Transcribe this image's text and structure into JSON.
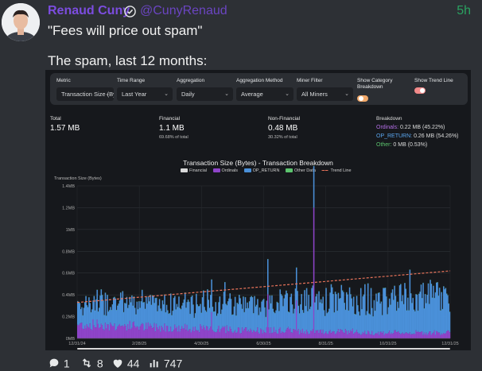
{
  "tweet": {
    "author": "Renaud Cuny",
    "handle": "@CunyRenaud",
    "time": "5h",
    "line1": "\"Fees will price out spam\"",
    "line2": "The spam, last 12 months:"
  },
  "controls": {
    "metric": {
      "label": "Metric",
      "value": "Transaction Size (Bytes)"
    },
    "time_range": {
      "label": "Time Range",
      "value": "Last Year"
    },
    "aggregation": {
      "label": "Aggregation",
      "value": "Daily"
    },
    "aggregation_method": {
      "label": "Aggregation Method",
      "value": "Average"
    },
    "miner_filter": {
      "label": "Miner Filter",
      "value": "All Miners"
    },
    "show_category": {
      "label": "Show Category Breakdown",
      "on": true
    },
    "show_trend": {
      "label": "Show Trend Line",
      "on": true
    }
  },
  "stats": {
    "total": {
      "label": "Total",
      "value": "1.57 MB"
    },
    "financial": {
      "label": "Financial",
      "value": "1.1 MB",
      "sub": "69.68% of total"
    },
    "non_financial": {
      "label": "Non-Financial",
      "value": "0.48 MB",
      "sub": "30.32% of total"
    },
    "breakdown": {
      "label": "Breakdown",
      "ordinals_name": "Ordinals:",
      "ordinals_value": "0.22 MB (45.22%)",
      "opreturn_name": "OP_RETURN:",
      "opreturn_value": "0.26 MB (54.26%)",
      "other_name": "Other:",
      "other_value": "0 MB (0.53%)"
    }
  },
  "colors": {
    "financial": "#d9d9d9",
    "ordinals": "#8e44c9",
    "op_return": "#4a90d9",
    "other": "#5cc46e",
    "trend": "#e8735a",
    "author": "#7c4de0"
  },
  "chart_data": {
    "type": "bar",
    "title": "Transaction Size (Bytes) - Transaction Breakdown",
    "ylabel": "Transaction Size (Bytes)",
    "ylim": [
      0,
      1.4
    ],
    "yticks": [
      "0MB",
      "0.2MB",
      "0.4MB",
      "0.6MB",
      "0.8MB",
      "1MB",
      "1.2MB",
      "1.4MB"
    ],
    "xticks": [
      "12/31/24",
      "2/28/25",
      "4/30/25",
      "6/30/25",
      "8/31/25",
      "10/31/25",
      "12/31/25"
    ],
    "legend": [
      "Financial",
      "Ordinals",
      "OP_RETURN",
      "Other Data",
      "Trend Line"
    ],
    "series": [
      {
        "name": "Ordinals",
        "monthly_avg": [
          0.12,
          0.11,
          0.1,
          0.09,
          0.08,
          0.07,
          0.07,
          0.06,
          0.06,
          0.05,
          0.05,
          0.05
        ]
      },
      {
        "name": "OP_RETURN",
        "monthly_avg": [
          0.2,
          0.21,
          0.21,
          0.22,
          0.23,
          0.24,
          0.25,
          0.27,
          0.28,
          0.29,
          0.31,
          0.32
        ]
      },
      {
        "name": "Other Data",
        "monthly_avg": [
          0.002,
          0.002,
          0.002,
          0.002,
          0.002,
          0.002,
          0.002,
          0.002,
          0.002,
          0.002,
          0.002,
          0.002
        ]
      }
    ],
    "trend": {
      "name": "Trend Line",
      "start": 0.33,
      "end": 0.62
    },
    "grid": true,
    "legend_position": "top"
  },
  "actions": {
    "replies": "1",
    "retweets": "8",
    "likes": "44",
    "views": "747"
  }
}
